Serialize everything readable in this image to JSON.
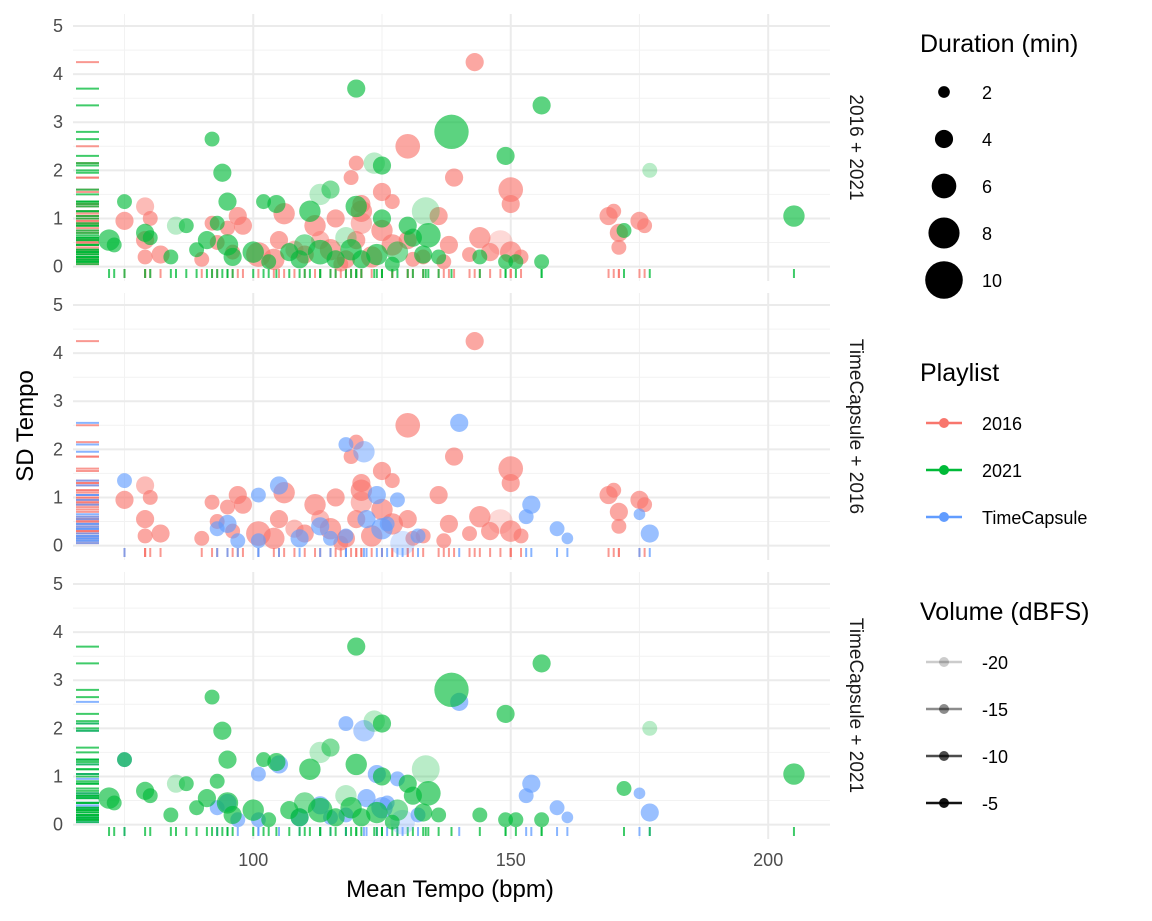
{
  "chart_data": {
    "type": "scatter",
    "title": "",
    "xlabel": "Mean Tempo (bpm)",
    "ylabel": "SD Tempo",
    "xlim": [
      65,
      212
    ],
    "ylim": [
      -0.3,
      5.25
    ],
    "x_ticks": [
      100,
      150,
      200
    ],
    "y_ticks": [
      0,
      1,
      2,
      3,
      4,
      5
    ],
    "grid": true,
    "colors": {
      "2016": "#F8766D",
      "2021": "#00BA38",
      "TimeCapsule": "#619CFF"
    },
    "legend": {
      "placement": "right",
      "size": {
        "title": "Duration (min)",
        "entries": [
          2,
          4,
          6,
          8,
          10
        ]
      },
      "color": {
        "title": "Playlist",
        "entries": [
          "2016",
          "2021",
          "TimeCapsule"
        ]
      },
      "alpha": {
        "title": "Volume (dBFS)",
        "entries": [
          -20,
          -15,
          -10,
          -5
        ]
      }
    },
    "panels": [
      {
        "label": "2016 + 2021",
        "series": [
          "2016",
          "2021"
        ]
      },
      {
        "label": "TimeCapsule + 2016",
        "series": [
          "2016",
          "TimeCapsule"
        ]
      },
      {
        "label": "TimeCapsule + 2021",
        "series": [
          "TimeCapsule",
          "2021"
        ]
      }
    ],
    "series_note": "points: [mean tempo bpm, sd tempo, duration min, volume dBFS]",
    "series": [
      {
        "name": "2016",
        "points": [
          [
            143,
            4.25,
            4,
            -10
          ],
          [
            130,
            2.5,
            6,
            -10
          ],
          [
            120,
            2.15,
            3,
            -10
          ],
          [
            119,
            1.85,
            3,
            -10
          ],
          [
            139,
            1.85,
            4,
            -10
          ],
          [
            150,
            1.6,
            6,
            -10
          ],
          [
            150,
            1.3,
            4,
            -10
          ],
          [
            125,
            1.55,
            4,
            -10
          ],
          [
            121,
            1.3,
            4,
            -10
          ],
          [
            121,
            1.15,
            5,
            -10
          ],
          [
            121,
            0.9,
            5,
            -12
          ],
          [
            116,
            1.0,
            4,
            -10
          ],
          [
            112,
            0.85,
            5,
            -10
          ],
          [
            106,
            1.1,
            5,
            -10
          ],
          [
            97,
            1.05,
            4,
            -10
          ],
          [
            98,
            0.85,
            4,
            -10
          ],
          [
            92,
            0.9,
            3,
            -10
          ],
          [
            95,
            0.8,
            3,
            -10
          ],
          [
            75,
            0.95,
            4,
            -10
          ],
          [
            80,
            1.0,
            3,
            -10
          ],
          [
            79,
            1.25,
            4,
            -12
          ],
          [
            79,
            0.55,
            4,
            -10
          ],
          [
            82,
            0.25,
            4,
            -10
          ],
          [
            79,
            0.2,
            3,
            -10
          ],
          [
            90,
            0.15,
            3,
            -10
          ],
          [
            101,
            0.25,
            6,
            -10
          ],
          [
            104,
            0.15,
            5,
            -10
          ],
          [
            110,
            0.25,
            4,
            -10
          ],
          [
            115,
            0.35,
            5,
            -10
          ],
          [
            118,
            0.15,
            4,
            -10
          ],
          [
            123,
            0.2,
            5,
            -10
          ],
          [
            127,
            0.45,
            5,
            -10
          ],
          [
            125,
            0.75,
            5,
            -10
          ],
          [
            130,
            0.55,
            4,
            -10
          ],
          [
            133,
            0.2,
            3,
            -10
          ],
          [
            138,
            0.45,
            4,
            -10
          ],
          [
            144,
            0.6,
            5,
            -10
          ],
          [
            148,
            0.5,
            6,
            -15
          ],
          [
            150,
            0.3,
            5,
            -10
          ],
          [
            152,
            0.2,
            3,
            -10
          ],
          [
            146,
            0.3,
            4,
            -10
          ],
          [
            127,
            1.35,
            3,
            -10
          ],
          [
            136,
            1.05,
            4,
            -10
          ],
          [
            169,
            1.05,
            4,
            -10
          ],
          [
            170,
            1.15,
            3,
            -10
          ],
          [
            175,
            0.95,
            4,
            -10
          ],
          [
            171,
            0.7,
            4,
            -10
          ],
          [
            176,
            0.85,
            3,
            -10
          ],
          [
            171,
            0.4,
            3,
            -10
          ],
          [
            93,
            0.5,
            3,
            -10
          ],
          [
            108,
            0.35,
            4,
            -12
          ],
          [
            113,
            0.55,
            4,
            -12
          ],
          [
            120,
            0.55,
            4,
            -10
          ],
          [
            117,
            0.05,
            3,
            -10
          ],
          [
            137,
            0.1,
            3,
            -10
          ],
          [
            142,
            0.25,
            3,
            -10
          ],
          [
            131,
            0.15,
            3,
            -10
          ],
          [
            96,
            0.3,
            3,
            -10
          ],
          [
            105,
            0.55,
            4,
            -10
          ]
        ]
      },
      {
        "name": "2021",
        "points": [
          [
            120,
            3.7,
            4,
            -10
          ],
          [
            156,
            3.35,
            4,
            -10
          ],
          [
            138.5,
            2.8,
            9,
            -10
          ],
          [
            92,
            2.65,
            3,
            -10
          ],
          [
            149,
            2.3,
            4,
            -10
          ],
          [
            123.5,
            2.15,
            5,
            -15
          ],
          [
            125,
            2.1,
            4,
            -10
          ],
          [
            177,
            2.0,
            3,
            -15
          ],
          [
            94,
            1.95,
            4,
            -10
          ],
          [
            120,
            1.25,
            5,
            -10
          ],
          [
            115,
            1.6,
            4,
            -12
          ],
          [
            113,
            1.5,
            5,
            -15
          ],
          [
            133.5,
            1.15,
            7,
            -15
          ],
          [
            95,
            1.35,
            4,
            -10
          ],
          [
            102,
            1.35,
            3,
            -10
          ],
          [
            111,
            1.15,
            5,
            -10
          ],
          [
            104.5,
            1.3,
            4,
            -10
          ],
          [
            75,
            1.35,
            3,
            -10
          ],
          [
            72,
            0.55,
            5,
            -10
          ],
          [
            79,
            0.7,
            4,
            -10
          ],
          [
            80,
            0.6,
            3,
            -10
          ],
          [
            85,
            0.85,
            4,
            -15
          ],
          [
            87,
            0.85,
            3,
            -10
          ],
          [
            91,
            0.55,
            4,
            -10
          ],
          [
            89,
            0.35,
            3,
            -10
          ],
          [
            93,
            0.9,
            3,
            -10
          ],
          [
            95,
            0.45,
            5,
            -10
          ],
          [
            96,
            0.2,
            4,
            -10
          ],
          [
            100,
            0.3,
            5,
            -10
          ],
          [
            103,
            0.1,
            3,
            -10
          ],
          [
            107,
            0.3,
            4,
            -10
          ],
          [
            110,
            0.45,
            5,
            -12
          ],
          [
            113,
            0.3,
            6,
            -10
          ],
          [
            116,
            0.15,
            4,
            -10
          ],
          [
            118,
            0.6,
            5,
            -15
          ],
          [
            119,
            0.35,
            5,
            -10
          ],
          [
            121,
            0.15,
            4,
            -10
          ],
          [
            124,
            0.25,
            5,
            -10
          ],
          [
            125,
            1.0,
            4,
            -10
          ],
          [
            128,
            0.3,
            5,
            -12
          ],
          [
            130,
            0.85,
            4,
            -10
          ],
          [
            131,
            0.6,
            4,
            -10
          ],
          [
            133,
            0.25,
            4,
            -10
          ],
          [
            136,
            0.2,
            3,
            -10
          ],
          [
            134,
            0.65,
            6,
            -10
          ],
          [
            144,
            0.2,
            3,
            -10
          ],
          [
            149,
            0.1,
            3,
            -10
          ],
          [
            151,
            0.1,
            3,
            -10
          ],
          [
            156,
            0.1,
            3,
            -10
          ],
          [
            172,
            0.75,
            3,
            -10
          ],
          [
            205,
            1.05,
            5,
            -10
          ],
          [
            84,
            0.2,
            3,
            -10
          ],
          [
            73,
            0.45,
            3,
            -10
          ],
          [
            127,
            0.05,
            3,
            -10
          ],
          [
            109,
            0.15,
            4,
            -10
          ]
        ]
      },
      {
        "name": "TimeCapsule",
        "points": [
          [
            140,
            2.55,
            4,
            -10
          ],
          [
            118,
            2.1,
            3,
            -10
          ],
          [
            121.5,
            1.95,
            5,
            -12
          ],
          [
            105,
            1.25,
            4,
            -10
          ],
          [
            101,
            1.05,
            3,
            -10
          ],
          [
            124,
            1.05,
            4,
            -10
          ],
          [
            128,
            0.95,
            3,
            -10
          ],
          [
            154,
            0.85,
            4,
            -10
          ],
          [
            153,
            0.6,
            3,
            -10
          ],
          [
            159,
            0.35,
            3,
            -10
          ],
          [
            161,
            0.15,
            2,
            -10
          ],
          [
            177,
            0.25,
            4,
            -10
          ],
          [
            175,
            0.65,
            2,
            -10
          ],
          [
            75,
            1.35,
            3,
            -10
          ],
          [
            93,
            0.35,
            3,
            -10
          ],
          [
            95,
            0.45,
            4,
            -10
          ],
          [
            97,
            0.1,
            3,
            -10
          ],
          [
            109,
            0.15,
            4,
            -10
          ],
          [
            113,
            0.4,
            4,
            -10
          ],
          [
            118,
            0.2,
            3,
            -10
          ],
          [
            125,
            0.35,
            5,
            -10
          ],
          [
            129,
            0.05,
            6,
            -15
          ],
          [
            132,
            0.2,
            3,
            -10
          ],
          [
            122,
            0.55,
            4,
            -10
          ],
          [
            101,
            0.1,
            3,
            -10
          ],
          [
            115,
            0.15,
            3,
            -10
          ],
          [
            126,
            0.45,
            3,
            -10
          ]
        ]
      }
    ]
  }
}
